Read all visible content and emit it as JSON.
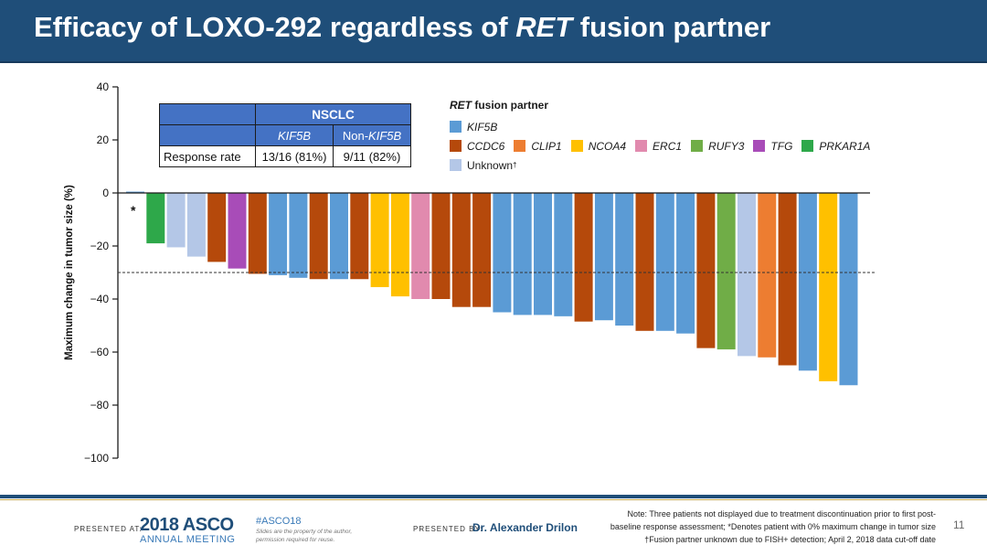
{
  "slide": {
    "title_pre": "Efficacy of LOXO-292 regardless of ",
    "title_italic": "RET",
    "title_post": " fusion partner",
    "slide_number": "11"
  },
  "table": {
    "group_header": "NSCLC",
    "col1_italic": "KIF5B",
    "col2_pre": "Non-",
    "col2_italic": "KIF5B",
    "row_label": "Response rate",
    "col1_value": "13/16 (81%)",
    "col2_value": "9/11 (82%)"
  },
  "legend": {
    "title_italic": "RET",
    "title_rest": " fusion partner",
    "items": [
      {
        "label": "KIF5B",
        "color": "#5b9bd5"
      },
      {
        "label": "CCDC6",
        "color": "#b5490b"
      },
      {
        "label": "CLIP1",
        "color": "#ed7d31"
      },
      {
        "label": "NCOA4",
        "color": "#ffc000"
      },
      {
        "label": "ERC1",
        "color": "#e18aae"
      },
      {
        "label": "RUFY3",
        "color": "#70ad47"
      },
      {
        "label": "TFG",
        "color": "#a84cb8"
      },
      {
        "label": "PRKAR1A",
        "color": "#2ea84a"
      },
      {
        "label": "Unknown",
        "color": "#b4c7e7",
        "superscript": "†"
      }
    ]
  },
  "chart_data": {
    "type": "bar",
    "ylabel": "Maximum change in tumor size (%)",
    "ylim": [
      -100,
      40
    ],
    "yticks": [
      40,
      20,
      0,
      -20,
      -40,
      -60,
      -80,
      -100
    ],
    "ytick_labels": [
      "40",
      "20",
      "0",
      "−20",
      "−40",
      "−60",
      "−80",
      "−100"
    ],
    "reference_line": -30,
    "asterisk_label": "*",
    "series": [
      {
        "value": 0.5,
        "partner": "KIF5B"
      },
      {
        "value": -19,
        "partner": "PRKAR1A"
      },
      {
        "value": -20.5,
        "partner": "Unknown"
      },
      {
        "value": -24,
        "partner": "Unknown"
      },
      {
        "value": -26,
        "partner": "CCDC6"
      },
      {
        "value": -28.5,
        "partner": "TFG"
      },
      {
        "value": -30.5,
        "partner": "CCDC6"
      },
      {
        "value": -31,
        "partner": "KIF5B"
      },
      {
        "value": -32,
        "partner": "KIF5B"
      },
      {
        "value": -32.5,
        "partner": "CCDC6"
      },
      {
        "value": -32.5,
        "partner": "KIF5B"
      },
      {
        "value": -32.5,
        "partner": "CCDC6"
      },
      {
        "value": -35.5,
        "partner": "NCOA4"
      },
      {
        "value": -39,
        "partner": "NCOA4"
      },
      {
        "value": -40,
        "partner": "ERC1"
      },
      {
        "value": -40,
        "partner": "CCDC6"
      },
      {
        "value": -43,
        "partner": "CCDC6"
      },
      {
        "value": -43,
        "partner": "CCDC6"
      },
      {
        "value": -45,
        "partner": "KIF5B"
      },
      {
        "value": -46,
        "partner": "KIF5B"
      },
      {
        "value": -46,
        "partner": "KIF5B"
      },
      {
        "value": -46.5,
        "partner": "KIF5B"
      },
      {
        "value": -48.5,
        "partner": "CCDC6"
      },
      {
        "value": -48,
        "partner": "KIF5B"
      },
      {
        "value": -50,
        "partner": "KIF5B"
      },
      {
        "value": -52,
        "partner": "CCDC6"
      },
      {
        "value": -52,
        "partner": "KIF5B"
      },
      {
        "value": -53,
        "partner": "KIF5B"
      },
      {
        "value": -58.5,
        "partner": "CCDC6"
      },
      {
        "value": -59,
        "partner": "RUFY3"
      },
      {
        "value": -61.5,
        "partner": "Unknown"
      },
      {
        "value": -62,
        "partner": "CLIP1"
      },
      {
        "value": -65,
        "partner": "CCDC6"
      },
      {
        "value": -67,
        "partner": "KIF5B"
      },
      {
        "value": -71,
        "partner": "NCOA4"
      },
      {
        "value": -72.5,
        "partner": "KIF5B"
      }
    ]
  },
  "footer": {
    "presented_at": "PRESENTED AT:",
    "asco_year": "2018 ASCO",
    "asco_sub": "ANNUAL MEETING",
    "hashtag": "#ASCO18",
    "rights_line1": "Slides are the property of the author,",
    "rights_line2": "permission required for reuse.",
    "presented_by": "PRESENTED BY:",
    "presenter": "Dr. Alexander Drilon",
    "note_line1": "Note: Three patients not displayed due to treatment discontinuation prior to first post-",
    "note_line2": "baseline response assessment; *Denotes patient with 0% maximum change in tumor size",
    "note_line3": "†Fusion partner unknown due to FISH+ detection; April 2, 2018 data cut-off date"
  }
}
